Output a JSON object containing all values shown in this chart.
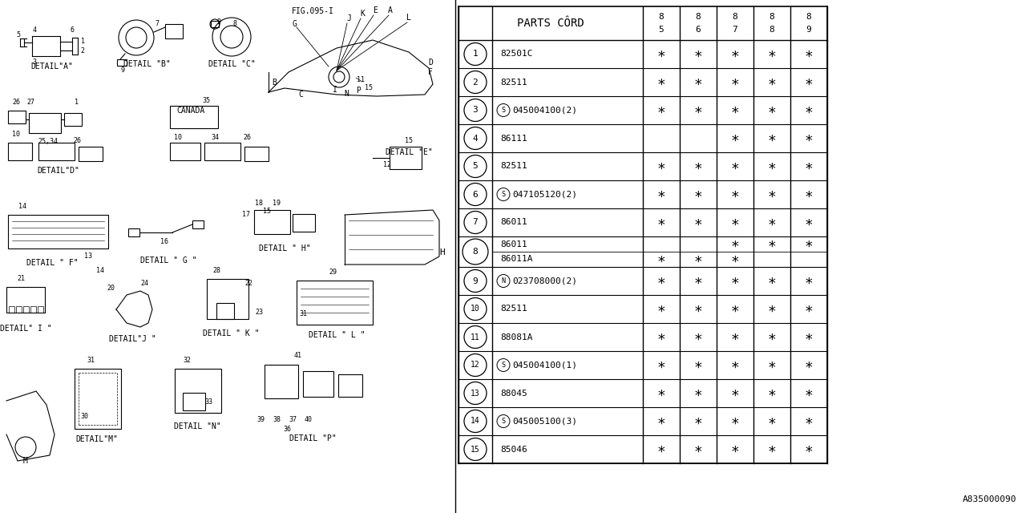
{
  "background_color": "#ffffff",
  "rows": [
    {
      "num": "1",
      "code": "82501C",
      "prefix": "",
      "cols": [
        true,
        true,
        true,
        true,
        true
      ],
      "split": false
    },
    {
      "num": "2",
      "code": "82511",
      "prefix": "",
      "cols": [
        true,
        true,
        true,
        true,
        true
      ],
      "split": false
    },
    {
      "num": "3",
      "code": "045004100(2)",
      "prefix": "S",
      "cols": [
        true,
        true,
        true,
        true,
        true
      ],
      "split": false
    },
    {
      "num": "4",
      "code": "86111",
      "prefix": "",
      "cols": [
        false,
        false,
        true,
        true,
        true
      ],
      "split": false
    },
    {
      "num": "5",
      "code": "82511",
      "prefix": "",
      "cols": [
        true,
        true,
        true,
        true,
        true
      ],
      "split": false
    },
    {
      "num": "6",
      "code": "047105120(2)",
      "prefix": "S",
      "cols": [
        true,
        true,
        true,
        true,
        true
      ],
      "split": false
    },
    {
      "num": "7",
      "code": "86011",
      "prefix": "",
      "cols": [
        true,
        true,
        true,
        true,
        true
      ],
      "split": false
    },
    {
      "num": "8",
      "code": "86011",
      "prefix": "",
      "cols": [
        false,
        false,
        true,
        true,
        true
      ],
      "split": true,
      "code2": "86011A",
      "prefix2": "",
      "cols2": [
        true,
        true,
        true,
        false,
        false
      ]
    },
    {
      "num": "9",
      "code": "023708000(2)",
      "prefix": "N",
      "cols": [
        true,
        true,
        true,
        true,
        true
      ],
      "split": false
    },
    {
      "num": "10",
      "code": "82511",
      "prefix": "",
      "cols": [
        true,
        true,
        true,
        true,
        true
      ],
      "split": false
    },
    {
      "num": "11",
      "code": "88081A",
      "prefix": "",
      "cols": [
        true,
        true,
        true,
        true,
        true
      ],
      "split": false
    },
    {
      "num": "12",
      "code": "045004100(1)",
      "prefix": "S",
      "cols": [
        true,
        true,
        true,
        true,
        true
      ],
      "split": false
    },
    {
      "num": "13",
      "code": "88045",
      "prefix": "",
      "cols": [
        true,
        true,
        true,
        true,
        true
      ],
      "split": false
    },
    {
      "num": "14",
      "code": "045005100(3)",
      "prefix": "S",
      "cols": [
        true,
        true,
        true,
        true,
        true
      ],
      "split": false
    },
    {
      "num": "15",
      "code": "85046",
      "prefix": "",
      "cols": [
        true,
        true,
        true,
        true,
        true
      ],
      "split": false
    }
  ],
  "col_headers": [
    "85",
    "86",
    "87",
    "88",
    "89"
  ],
  "footer_text": "A835000090"
}
